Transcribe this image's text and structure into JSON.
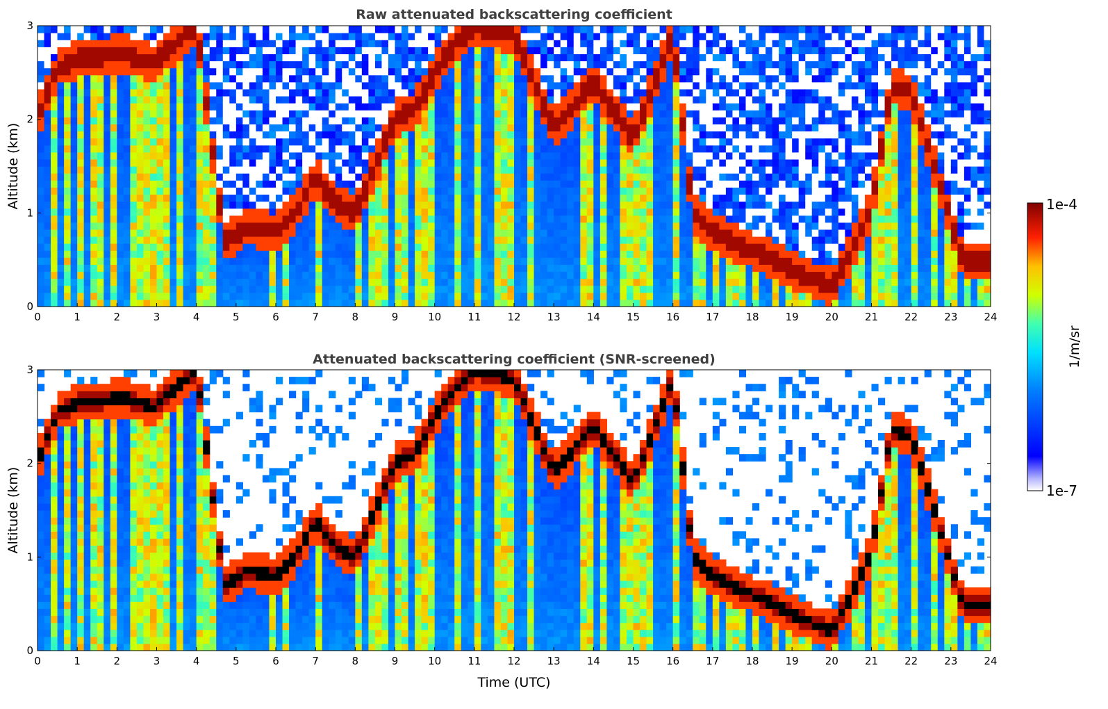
{
  "colormap": [
    "#ffffff",
    "#0000ff",
    "#00b4ff",
    "#00ffc8",
    "#c8ff00",
    "#ffc800",
    "#ff3c00",
    "#800000"
  ],
  "chart_data": [
    {
      "type": "heatmap",
      "title": "Raw attenuated backscattering coefficient",
      "xlabel": "",
      "ylabel": "Altitude (km)",
      "xlim": [
        0,
        24
      ],
      "ylim": [
        0,
        3
      ],
      "xticks": [
        "0",
        "1",
        "2",
        "3",
        "4",
        "5",
        "6",
        "7",
        "8",
        "9",
        "10",
        "11",
        "12",
        "13",
        "14",
        "15",
        "16",
        "17",
        "18",
        "19",
        "20",
        "21",
        "22",
        "23",
        "24"
      ],
      "yticks": [
        "0",
        "1",
        "2",
        "3"
      ],
      "screened": false
    },
    {
      "type": "heatmap",
      "title": "Attenuated backscattering coefficient (SNR-screened)",
      "xlabel": "Time (UTC)",
      "ylabel": "Altitude (km)",
      "xlim": [
        0,
        24
      ],
      "ylim": [
        0,
        3
      ],
      "xticks": [
        "0",
        "1",
        "2",
        "3",
        "4",
        "5",
        "6",
        "7",
        "8",
        "9",
        "10",
        "11",
        "12",
        "13",
        "14",
        "15",
        "16",
        "17",
        "18",
        "19",
        "20",
        "21",
        "22",
        "23",
        "24"
      ],
      "yticks": [
        "0",
        "1",
        "2",
        "3"
      ],
      "screened": true
    }
  ],
  "colorbar": {
    "label": "1/m/sr",
    "max_label": "1e-4",
    "min_label": "1e-7",
    "scale": "log",
    "range": [
      1e-07,
      0.0001
    ]
  },
  "cloud_base_trace": [
    [
      0.0,
      2.0
    ],
    [
      0.5,
      2.55
    ],
    [
      1.0,
      2.65
    ],
    [
      2.2,
      2.7
    ],
    [
      2.9,
      2.6
    ],
    [
      3.6,
      2.85
    ],
    [
      4.0,
      3.0
    ],
    [
      4.7,
      0.7
    ],
    [
      5.3,
      0.85
    ],
    [
      6.0,
      0.8
    ],
    [
      6.5,
      1.0
    ],
    [
      7.0,
      1.4
    ],
    [
      7.5,
      1.1
    ],
    [
      8.0,
      1.0
    ],
    [
      8.5,
      1.5
    ],
    [
      9.0,
      2.0
    ],
    [
      9.5,
      2.1
    ],
    [
      10.0,
      2.5
    ],
    [
      10.5,
      2.8
    ],
    [
      11.0,
      3.0
    ],
    [
      12.0,
      2.9
    ],
    [
      13.0,
      1.9
    ],
    [
      14.0,
      2.4
    ],
    [
      15.0,
      1.8
    ],
    [
      16.0,
      2.9
    ],
    [
      16.5,
      1.0
    ],
    [
      17.0,
      0.8
    ],
    [
      17.5,
      0.7
    ],
    [
      18.0,
      0.6
    ],
    [
      19.0,
      0.4
    ],
    [
      20.0,
      0.2
    ],
    [
      20.5,
      0.6
    ],
    [
      21.0,
      1.05
    ],
    [
      21.5,
      2.35
    ],
    [
      22.0,
      2.3
    ],
    [
      23.3,
      0.5
    ],
    [
      24.0,
      0.5
    ]
  ]
}
